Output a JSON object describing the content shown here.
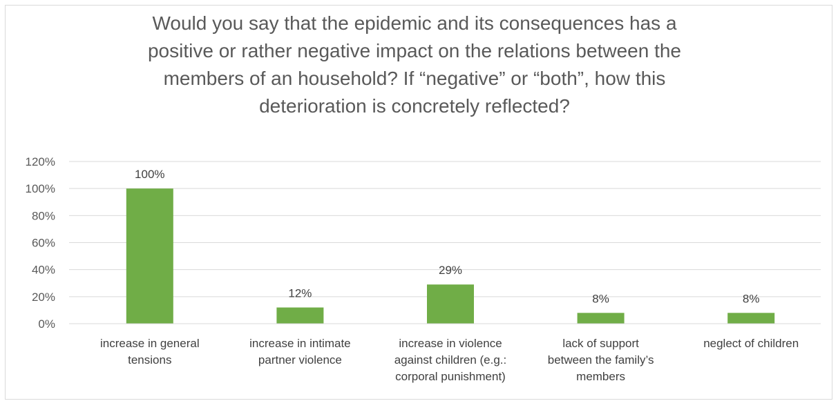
{
  "chart_data": {
    "type": "bar",
    "title": "Would you say that the epidemic and its consequences has a\npositive or rather negative impact on the relations between the\nmembers of an household? If “negative” or “both”, how this\ndeterioration is concretely reflected?",
    "categories": [
      "increase in general\ntensions",
      "increase in intimate\npartner violence",
      "increase in violence\nagainst children (e.g.:\ncorporal punishment)",
      "lack of support\nbetween the family’s\nmembers",
      "neglect of children"
    ],
    "values": [
      1.0,
      0.12,
      0.29,
      0.08,
      0.08
    ],
    "data_labels": [
      "100%",
      "12%",
      "29%",
      "8%",
      "8%"
    ],
    "ylim": [
      0,
      1.2
    ],
    "yticks": [
      "0%",
      "20%",
      "40%",
      "60%",
      "80%",
      "100%",
      "120%"
    ],
    "grid": true,
    "legend": "none",
    "xlabel": "",
    "ylabel": "",
    "colors": {
      "bar": "#70ad47",
      "grid": "#d9d9d9",
      "text": "#595959"
    }
  }
}
